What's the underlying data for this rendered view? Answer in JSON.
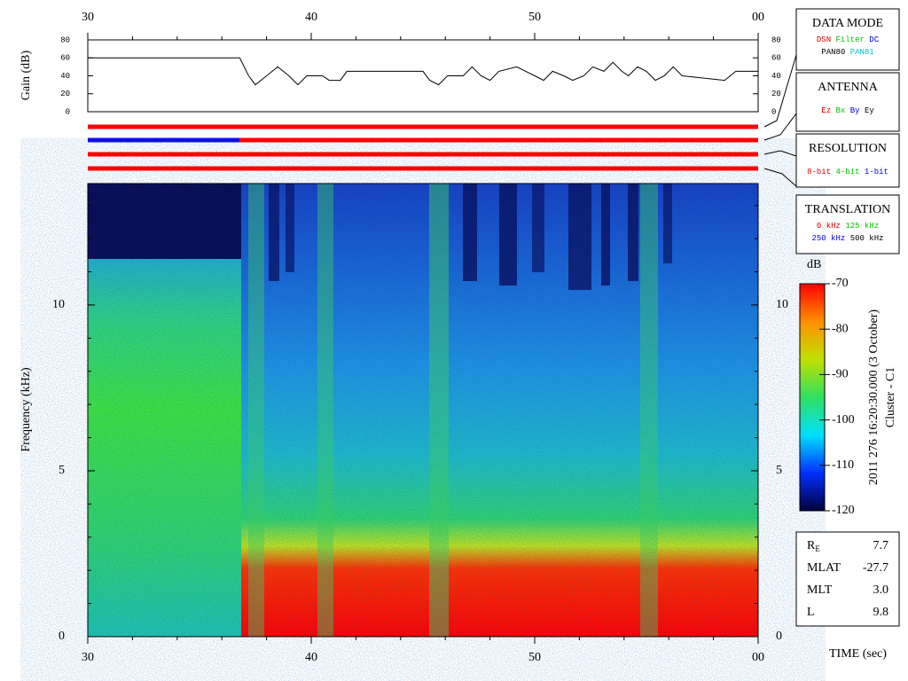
{
  "chart_data": [
    {
      "type": "line",
      "ylabel": "Gain (dB)",
      "color": "#000000",
      "xlim": [
        30,
        60
      ],
      "xticks": [
        30,
        40,
        50,
        {
          "value": 60,
          "label": "00"
        }
      ],
      "ylim": [
        0,
        80
      ],
      "yticks": [
        0,
        20,
        40,
        60,
        80
      ],
      "x": [
        30,
        36.8,
        37.2,
        37.5,
        38,
        38.5,
        39,
        39.4,
        39.8,
        40.5,
        40.8,
        41.3,
        41.6,
        45,
        45.3,
        45.7,
        46.1,
        46.8,
        47.2,
        47.6,
        48,
        48.4,
        49.2,
        49.6,
        50,
        50.4,
        50.8,
        51.3,
        51.7,
        52.2,
        52.6,
        53.1,
        53.5,
        53.9,
        54.2,
        54.6,
        55,
        55.4,
        55.8,
        56.2,
        56.6,
        58.5,
        59,
        60
      ],
      "values": [
        60,
        60,
        40,
        30,
        40,
        50,
        40,
        30,
        40,
        40,
        35,
        35,
        45,
        45,
        35,
        30,
        40,
        40,
        50,
        40,
        35,
        45,
        50,
        45,
        40,
        35,
        45,
        40,
        35,
        40,
        50,
        45,
        55,
        45,
        40,
        50,
        45,
        35,
        40,
        50,
        40,
        35,
        45,
        45
      ]
    },
    {
      "type": "spectrogram",
      "ylabel": "Frequency (kHz)",
      "xlabel": "TIME (sec)",
      "xlim": [
        30,
        60
      ],
      "xticks": [
        30,
        40,
        50,
        {
          "value": 60,
          "label": "00"
        }
      ],
      "ylim": [
        0,
        13.66
      ],
      "yticks": [
        0,
        5,
        10
      ]
    },
    {
      "type": "colorbar",
      "title": "dB",
      "ylim": [
        -120,
        -70
      ],
      "yticks": [
        -120,
        -110,
        -100,
        -90,
        -80,
        -70
      ],
      "colors": [
        "#00003c",
        "#0030ff",
        "#00e0ff",
        "#30e060",
        "#c0e000",
        "#ff9000",
        "#ff0000"
      ]
    }
  ],
  "status_bars": [
    {
      "segments": [
        {
          "start": 30,
          "end": 60,
          "color": "#ff0000"
        }
      ]
    },
    {
      "segments": [
        {
          "start": 30,
          "end": 36.8,
          "color": "#1010e0"
        },
        {
          "start": 36.8,
          "end": 60,
          "color": "#ff0000"
        }
      ]
    },
    {
      "segments": [
        {
          "start": 30,
          "end": 60,
          "color": "#ff0000"
        }
      ]
    },
    {
      "segments": [
        {
          "start": 30,
          "end": 60,
          "color": "#ff0000"
        }
      ]
    }
  ],
  "legend_boxes": [
    {
      "title": "DATA MODE",
      "rows": [
        [
          {
            "text": "DSN",
            "color": "#e00000"
          },
          {
            "text": "Filter",
            "color": "#00c000"
          },
          {
            "text": "DC",
            "color": "#0000e0"
          }
        ],
        [
          {
            "text": "PAN80",
            "color": "#000000"
          },
          {
            "text": "PAN81",
            "color": "#00c0c0"
          }
        ]
      ]
    },
    {
      "title": "ANTENNA",
      "rows": [
        [
          {
            "text": "Ez",
            "color": "#e00000"
          },
          {
            "text": "Bx",
            "color": "#00c000"
          },
          {
            "text": "By",
            "color": "#0000e0"
          },
          {
            "text": "Ey",
            "color": "#000000"
          }
        ]
      ]
    },
    {
      "title": "RESOLUTION",
      "rows": [
        [
          {
            "text": "8-bit",
            "color": "#e00000"
          },
          {
            "text": "4-bit",
            "color": "#00c000"
          },
          {
            "text": "1-bit",
            "color": "#0000e0"
          }
        ]
      ]
    },
    {
      "title": "TRANSLATION",
      "rows": [
        [
          {
            "text": "0 kHz",
            "color": "#e00000"
          },
          {
            "text": "125 kHz",
            "color": "#00c000"
          }
        ],
        [
          {
            "text": "250 kHz",
            "color": "#0000e0"
          },
          {
            "text": "500 kHz",
            "color": "#000000"
          }
        ]
      ]
    }
  ],
  "side_label": [
    "2011 276 16:20:30.000 (3 October)",
    "Cluster - C1"
  ],
  "orbit": [
    {
      "label": "R",
      "sub": "E",
      "value": "7.7"
    },
    {
      "label": "MLAT",
      "value": "-27.7"
    },
    {
      "label": "MLT",
      "value": "3.0"
    },
    {
      "label": "L",
      "value": "9.8"
    }
  ]
}
